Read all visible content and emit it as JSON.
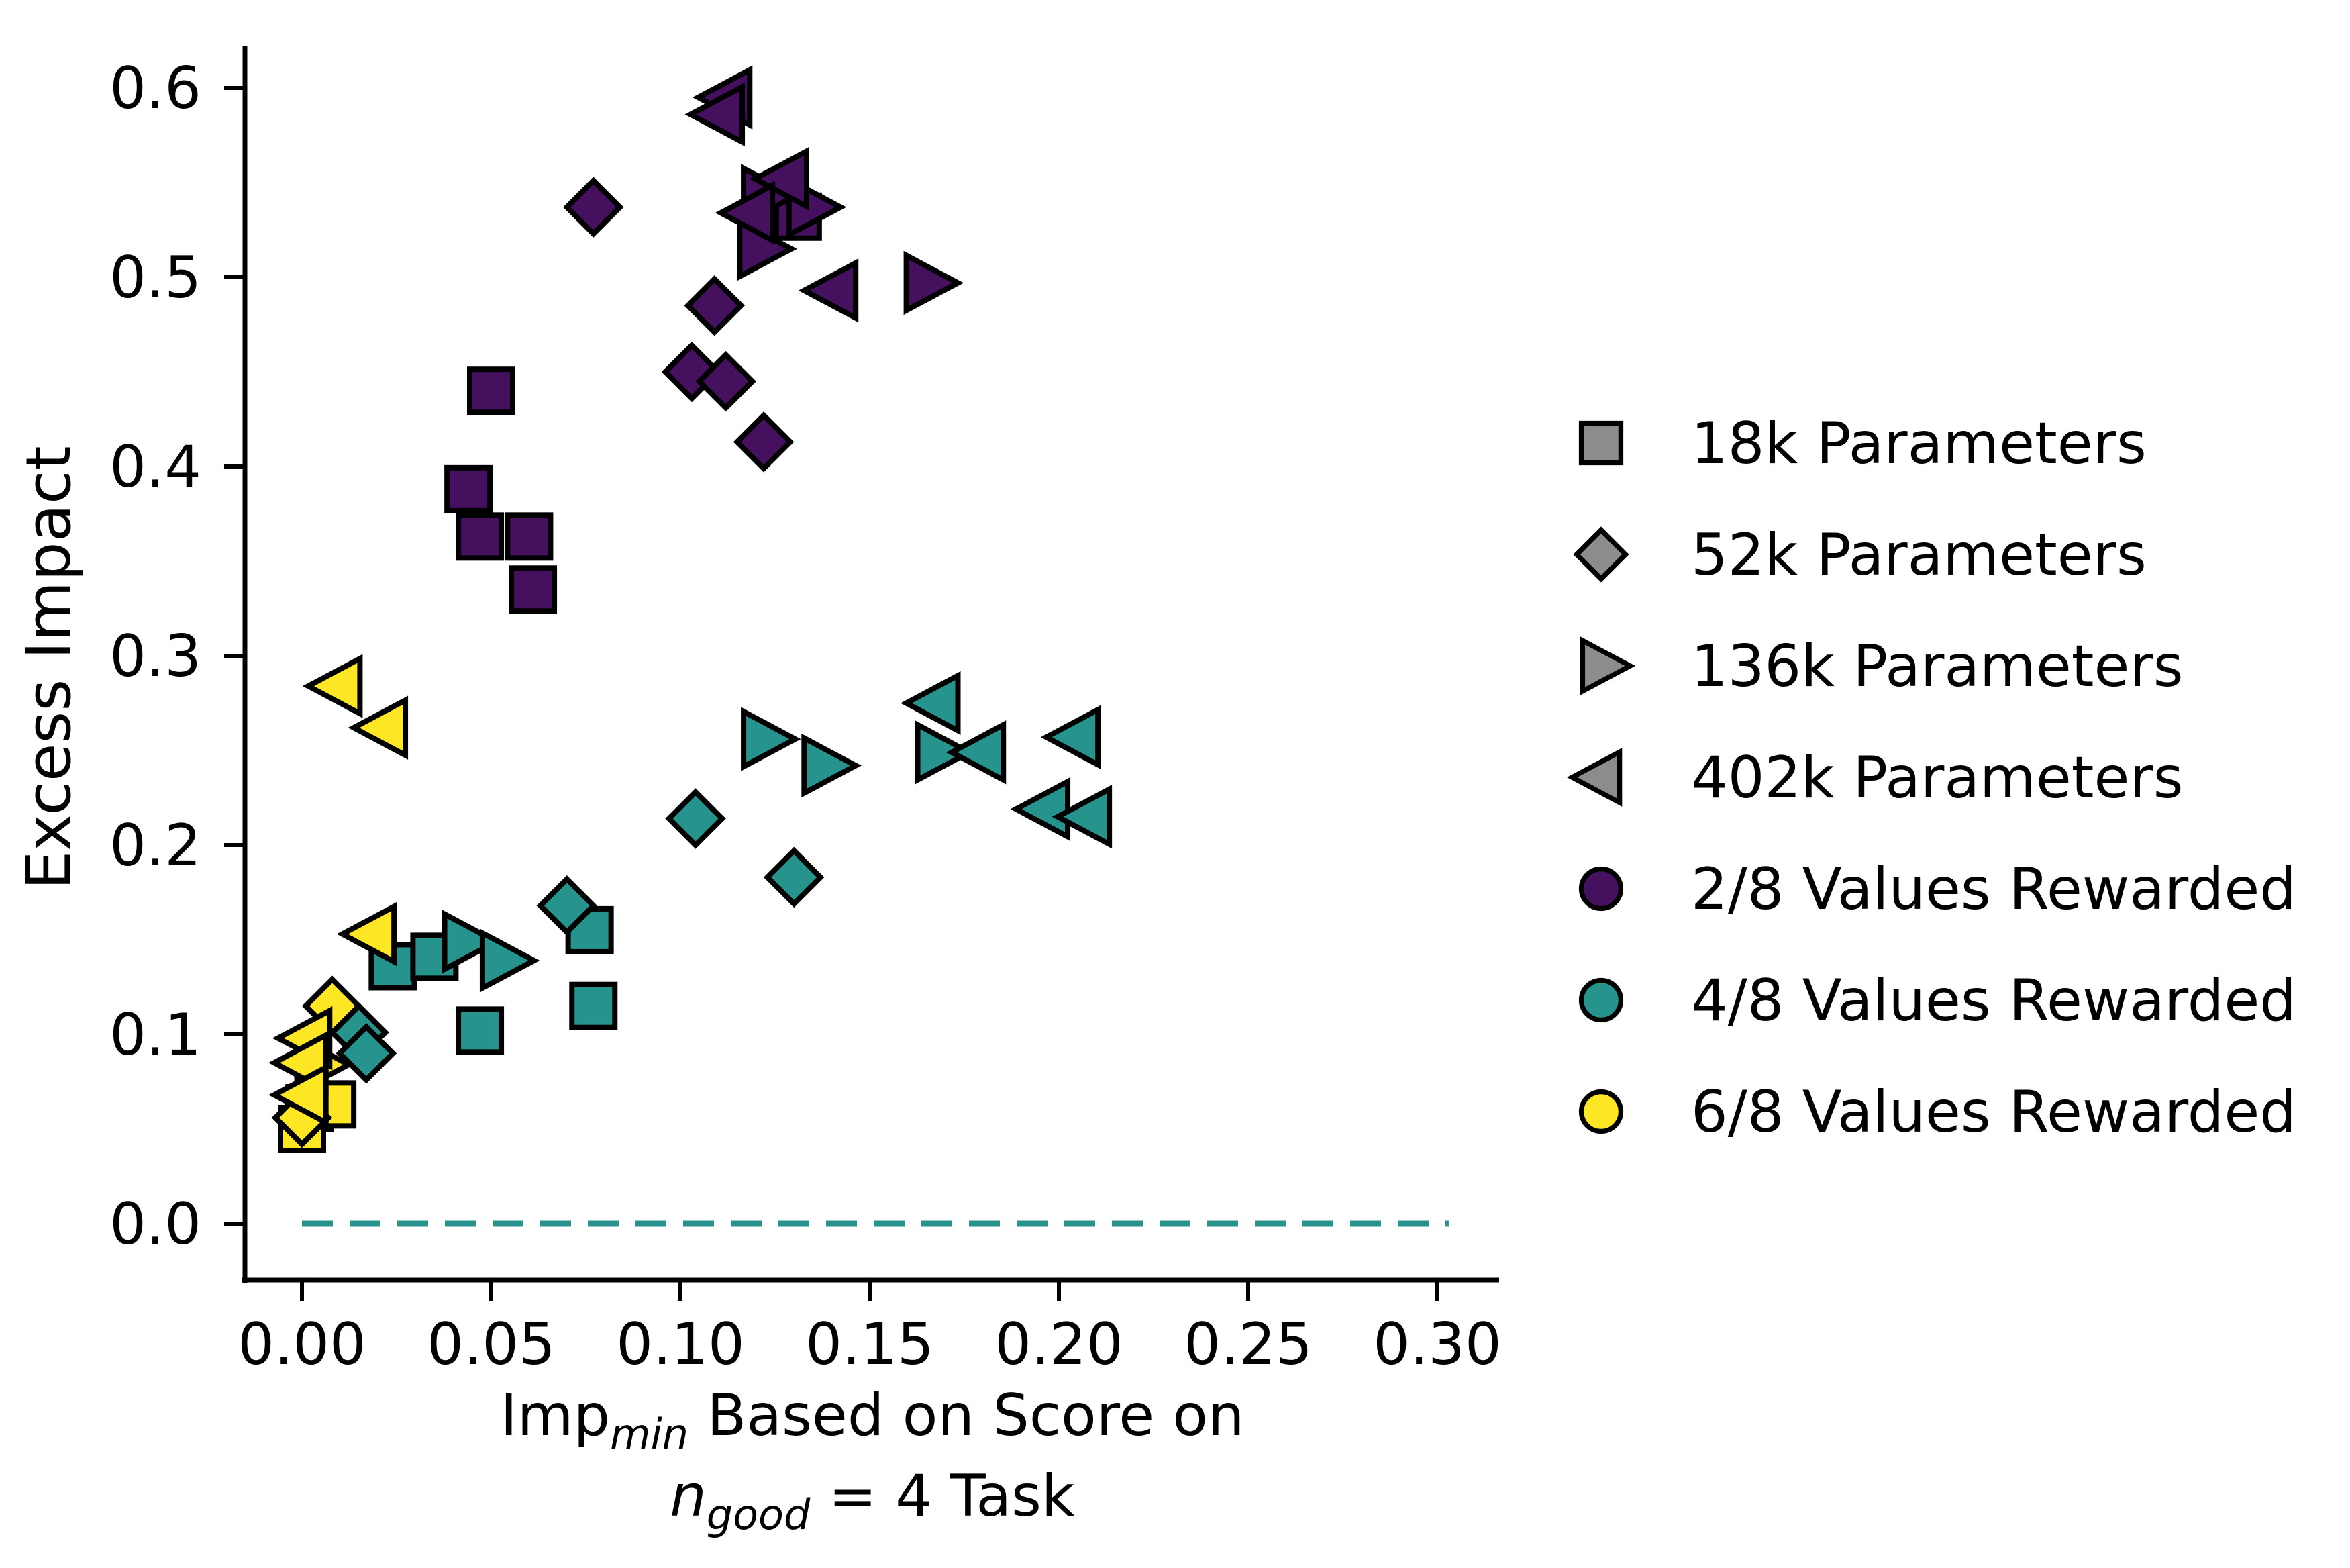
{
  "chart_data": {
    "type": "scatter",
    "title": "",
    "ylabel": "Excess Impact",
    "xlabel": {
      "line1_main": "Imp",
      "line1_sub": "min",
      "line1_rest": " Based on Score on",
      "line2_var": "n",
      "line2_sub": "good",
      "line2_rest": " = 4 Task"
    },
    "xlim": [
      -0.015,
      0.316
    ],
    "ylim": [
      -0.03,
      0.62
    ],
    "grid": false,
    "xticks": {
      "values": [
        0.0,
        0.05,
        0.1,
        0.15,
        0.2,
        0.25,
        0.3
      ],
      "labels": [
        "0.00",
        "0.05",
        "0.10",
        "0.15",
        "0.20",
        "0.25",
        "0.30"
      ]
    },
    "yticks": {
      "values": [
        0.0,
        0.1,
        0.2,
        0.3,
        0.4,
        0.5,
        0.6
      ],
      "labels": [
        "0.0",
        "0.1",
        "0.2",
        "0.3",
        "0.4",
        "0.5",
        "0.6"
      ]
    },
    "colors": {
      "purple": "#45105e",
      "teal": "#26938c",
      "yellow": "#fde725",
      "legend_gray": "#8c8c8c",
      "edge": "#000000"
    },
    "zero_line": {
      "y": 0.0,
      "x_start": 0.0,
      "x_end": 0.303,
      "color": "#26938c",
      "style": "dashed"
    },
    "legend": {
      "position": "right",
      "shape_entries": [
        {
          "shape": "square",
          "label": "18k Parameters"
        },
        {
          "shape": "diamond",
          "label": "52k Parameters"
        },
        {
          "shape": "triangle-right",
          "label": "136k Parameters"
        },
        {
          "shape": "triangle-left",
          "label": "402k Parameters"
        }
      ],
      "color_entries": [
        {
          "color_key": "purple",
          "label": "2/8 Values Rewarded"
        },
        {
          "color_key": "teal",
          "label": "4/8 Values Rewarded"
        },
        {
          "color_key": "yellow",
          "label": "6/8 Values Rewarded"
        }
      ]
    },
    "series": [
      {
        "name": "2/8 Values Rewarded - 18k (square)",
        "color_key": "purple",
        "shape": "square",
        "points": [
          [
            0.05,
            0.44
          ],
          [
            0.044,
            0.388
          ],
          [
            0.047,
            0.363
          ],
          [
            0.06,
            0.363
          ],
          [
            0.061,
            0.335
          ],
          [
            0.131,
            0.532
          ]
        ]
      },
      {
        "name": "2/8 Values Rewarded - 52k (diamond)",
        "color_key": "purple",
        "shape": "diamond",
        "points": [
          [
            0.077,
            0.537
          ],
          [
            0.109,
            0.485
          ],
          [
            0.103,
            0.45
          ],
          [
            0.112,
            0.445
          ],
          [
            0.122,
            0.413
          ]
        ]
      },
      {
        "name": "2/8 Values Rewarded - 136k (triangle-right)",
        "color_key": "purple",
        "shape": "triangle-right",
        "points": [
          [
            0.122,
            0.543
          ],
          [
            0.134,
            0.537
          ],
          [
            0.121,
            0.515
          ],
          [
            0.165,
            0.497
          ]
        ]
      },
      {
        "name": "2/8 Values Rewarded - 402k (triangle-left)",
        "color_key": "purple",
        "shape": "triangle-left",
        "points": [
          [
            0.113,
            0.595
          ],
          [
            0.111,
            0.586
          ],
          [
            0.128,
            0.552
          ],
          [
            0.119,
            0.534
          ],
          [
            0.141,
            0.493
          ]
        ]
      },
      {
        "name": "4/8 Values Rewarded - 18k (square)",
        "color_key": "teal",
        "shape": "square",
        "points": [
          [
            0.024,
            0.136
          ],
          [
            0.035,
            0.141
          ],
          [
            0.047,
            0.102
          ],
          [
            0.076,
            0.155
          ],
          [
            0.077,
            0.115
          ]
        ]
      },
      {
        "name": "4/8 Values Rewarded - 52k (diamond)",
        "color_key": "teal",
        "shape": "diamond",
        "points": [
          [
            0.015,
            0.101
          ],
          [
            0.017,
            0.09
          ],
          [
            0.07,
            0.168
          ],
          [
            0.104,
            0.214
          ],
          [
            0.13,
            0.183
          ]
        ]
      },
      {
        "name": "4/8 Values Rewarded - 136k (triangle-right)",
        "color_key": "teal",
        "shape": "triangle-right",
        "points": [
          [
            0.043,
            0.149
          ],
          [
            0.053,
            0.139
          ],
          [
            0.122,
            0.256
          ],
          [
            0.138,
            0.242
          ],
          [
            0.168,
            0.249
          ]
        ]
      },
      {
        "name": "4/8 Values Rewarded - 402k (triangle-left)",
        "color_key": "teal",
        "shape": "triangle-left",
        "points": [
          [
            0.168,
            0.275
          ],
          [
            0.18,
            0.249
          ],
          [
            0.205,
            0.257
          ],
          [
            0.197,
            0.219
          ],
          [
            0.208,
            0.215
          ]
        ]
      },
      {
        "name": "6/8 Values Rewarded - 18k (square)",
        "color_key": "yellow",
        "shape": "square",
        "points": [
          [
            0.002,
            0.061
          ],
          [
            0.008,
            0.063
          ],
          [
            0.0,
            0.05
          ]
        ]
      },
      {
        "name": "6/8 Values Rewarded - 52k (diamond)",
        "color_key": "yellow",
        "shape": "diamond",
        "points": [
          [
            0.008,
            0.115
          ],
          [
            0.0,
            0.056
          ]
        ]
      },
      {
        "name": "6/8 Values Rewarded - 136k (triangle-right)",
        "color_key": "yellow",
        "shape": "triangle-right",
        "points": [
          [
            0.004,
            0.084
          ]
        ]
      },
      {
        "name": "6/8 Values Rewarded - 402k (triangle-left)",
        "color_key": "yellow",
        "shape": "triangle-left",
        "points": [
          [
            0.01,
            0.284
          ],
          [
            0.022,
            0.262
          ],
          [
            0.019,
            0.153
          ],
          [
            0.002,
            0.098
          ],
          [
            0.001,
            0.085
          ],
          [
            0.001,
            0.068
          ]
        ]
      }
    ]
  }
}
